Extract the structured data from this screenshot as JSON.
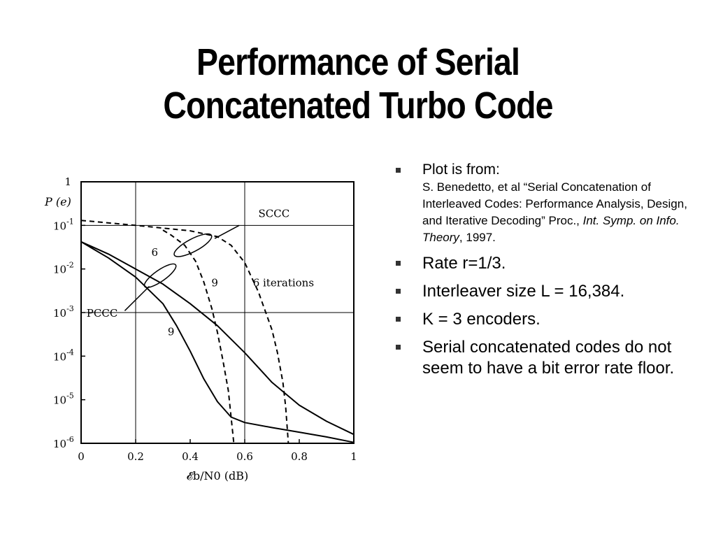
{
  "slide": {
    "title_line1": "Performance of Serial",
    "title_line2": "Concatenated Turbo Code"
  },
  "bullets": {
    "b1_lead": "Plot is from:",
    "b1_ref_a": "S. Benedetto, et al “Serial Concatenation of Interleaved Codes: Performance Analysis, Design, and Iterative Decoding” Proc., ",
    "b1_ref_italic": "Int. Symp. on Info. Theory",
    "b1_ref_b": ", 1997.",
    "b2": "Rate r=1/3.",
    "b3": "Interleaver size L = 16,384.",
    "b4": "K = 3 encoders.",
    "b5": "Serial concatenated codes do not seem to have a bit error rate floor."
  },
  "chart_data": {
    "type": "line",
    "ylabel": "P_b(e)",
    "xlabel": "𝓔_b/N_0 (dB)",
    "xlim": [
      0,
      1
    ],
    "ylim": [
      1e-06,
      1
    ],
    "yscale": "log",
    "grid": "sparse (x=0.2, x=0.6, y=1e-1, y=1e-3)",
    "x_ticks": [
      "0",
      "0.2",
      "0.4",
      "0.6",
      "0.8",
      "1"
    ],
    "y_ticks": [
      "1",
      "10^-1",
      "10^-2",
      "10^-3",
      "10^-4",
      "10^-5",
      "10^-6"
    ],
    "annotations": {
      "sccc": "SCCC",
      "pccc": "PCCC",
      "pccc_6": "6",
      "pccc_9": "9",
      "sccc_9": "9",
      "sccc_6_iter": "6  iterations"
    },
    "series": [
      {
        "style": "solid",
        "group": "PCCC",
        "iterations": 6,
        "points": [
          [
            0,
            0.042
          ],
          [
            0.1,
            0.022
          ],
          [
            0.2,
            0.01
          ],
          [
            0.3,
            0.0045
          ],
          [
            0.4,
            0.0016
          ],
          [
            0.5,
            0.0005
          ],
          [
            0.6,
            0.00012
          ],
          [
            0.7,
            2.5e-05
          ],
          [
            0.8,
            7.5e-06
          ],
          [
            0.9,
            3.2e-06
          ],
          [
            1.0,
            1.6e-06
          ]
        ]
      },
      {
        "style": "solid",
        "group": "PCCC",
        "iterations": 9,
        "points": [
          [
            0,
            0.042
          ],
          [
            0.1,
            0.018
          ],
          [
            0.2,
            0.0065
          ],
          [
            0.3,
            0.0016
          ],
          [
            0.35,
            0.0005
          ],
          [
            0.4,
            0.00013
          ],
          [
            0.45,
            3e-05
          ],
          [
            0.5,
            9e-06
          ],
          [
            0.55,
            4e-06
          ],
          [
            0.6,
            3e-06
          ],
          [
            0.7,
            2.3e-06
          ],
          [
            0.8,
            1.8e-06
          ],
          [
            0.9,
            1.4e-06
          ],
          [
            1.0,
            1.05e-06
          ]
        ]
      },
      {
        "style": "dashed",
        "group": "SCCC",
        "iterations": 6,
        "points": [
          [
            0,
            0.13
          ],
          [
            0.2,
            0.1
          ],
          [
            0.4,
            0.075
          ],
          [
            0.5,
            0.055
          ],
          [
            0.55,
            0.035
          ],
          [
            0.6,
            0.014
          ],
          [
            0.65,
            0.003
          ],
          [
            0.7,
            0.0004
          ],
          [
            0.72,
            0.00012
          ],
          [
            0.74,
            2.5e-05
          ],
          [
            0.75,
            7e-06
          ],
          [
            0.76,
            1e-06
          ]
        ]
      },
      {
        "style": "dashed",
        "group": "SCCC",
        "iterations": 9,
        "points": [
          [
            0.3,
            0.078
          ],
          [
            0.33,
            0.06
          ],
          [
            0.38,
            0.035
          ],
          [
            0.42,
            0.015
          ],
          [
            0.45,
            0.005
          ],
          [
            0.48,
            0.0012
          ],
          [
            0.5,
            0.00035
          ],
          [
            0.52,
            8e-05
          ],
          [
            0.54,
            1.6e-05
          ],
          [
            0.56,
            1e-06
          ]
        ]
      }
    ]
  }
}
